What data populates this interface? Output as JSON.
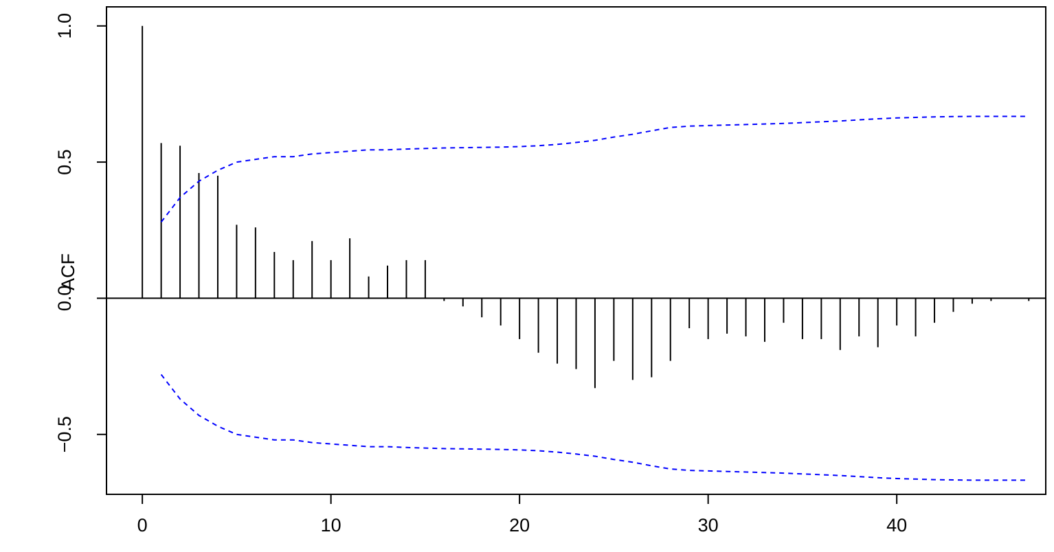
{
  "chart_data": {
    "type": "bar",
    "xlabel": "",
    "ylabel": "ACF",
    "xlim": [
      -1.9,
      47.9
    ],
    "ylim": [
      -0.72,
      1.07
    ],
    "x_ticks": [
      "0",
      "10",
      "20",
      "30",
      "40"
    ],
    "y_ticks": [
      "−0.5",
      "0.0",
      "0.5",
      "1.0"
    ],
    "grid": false,
    "series": [
      {
        "x": [
          0,
          1,
          2,
          3,
          4,
          5,
          6,
          7,
          8,
          9,
          10,
          11,
          12,
          13,
          14,
          15,
          16,
          17,
          18,
          19,
          20,
          21,
          22,
          23,
          24,
          25,
          26,
          27,
          28,
          29,
          30,
          31,
          32,
          33,
          34,
          35,
          36,
          37,
          38,
          39,
          40,
          41,
          42,
          43,
          44,
          45,
          46,
          47
        ],
        "values": [
          1.0,
          0.57,
          0.56,
          0.46,
          0.45,
          0.27,
          0.26,
          0.17,
          0.14,
          0.21,
          0.14,
          0.22,
          0.08,
          0.12,
          0.14,
          0.14,
          -0.01,
          -0.03,
          -0.07,
          -0.1,
          -0.15,
          -0.2,
          -0.24,
          -0.26,
          -0.33,
          -0.23,
          -0.3,
          -0.29,
          -0.23,
          -0.11,
          -0.15,
          -0.13,
          -0.14,
          -0.16,
          -0.09,
          -0.15,
          -0.15,
          -0.19,
          -0.14,
          -0.18,
          -0.1,
          -0.14,
          -0.09,
          -0.05,
          -0.02,
          -0.01,
          0.0,
          -0.01
        ]
      }
    ],
    "confidence_band": {
      "x": [
        1,
        2,
        3,
        4,
        5,
        6,
        7,
        8,
        9,
        10,
        11,
        12,
        13,
        14,
        15,
        16,
        17,
        18,
        19,
        20,
        21,
        22,
        23,
        24,
        25,
        26,
        27,
        28,
        29,
        30,
        31,
        32,
        33,
        34,
        35,
        36,
        37,
        38,
        39,
        40,
        41,
        42,
        43,
        44,
        45,
        46,
        47
      ],
      "upper": [
        0.28,
        0.37,
        0.43,
        0.47,
        0.5,
        0.51,
        0.52,
        0.52,
        0.53,
        0.535,
        0.54,
        0.545,
        0.545,
        0.548,
        0.55,
        0.552,
        0.553,
        0.554,
        0.555,
        0.557,
        0.56,
        0.565,
        0.572,
        0.58,
        0.592,
        0.602,
        0.615,
        0.627,
        0.632,
        0.634,
        0.636,
        0.638,
        0.64,
        0.642,
        0.645,
        0.648,
        0.651,
        0.655,
        0.659,
        0.662,
        0.664,
        0.666,
        0.667,
        0.668,
        0.668,
        0.668,
        0.668
      ],
      "lower": [
        -0.28,
        -0.37,
        -0.43,
        -0.47,
        -0.5,
        -0.51,
        -0.52,
        -0.52,
        -0.53,
        -0.535,
        -0.54,
        -0.545,
        -0.545,
        -0.548,
        -0.55,
        -0.552,
        -0.553,
        -0.554,
        -0.555,
        -0.557,
        -0.56,
        -0.565,
        -0.572,
        -0.58,
        -0.592,
        -0.602,
        -0.615,
        -0.627,
        -0.632,
        -0.634,
        -0.636,
        -0.638,
        -0.64,
        -0.642,
        -0.645,
        -0.648,
        -0.651,
        -0.655,
        -0.659,
        -0.662,
        -0.664,
        -0.666,
        -0.667,
        -0.668,
        -0.668,
        -0.668,
        -0.668
      ],
      "color": "#0000ff",
      "style": "dashed"
    },
    "zero_line": true,
    "bar_color": "#000000"
  }
}
